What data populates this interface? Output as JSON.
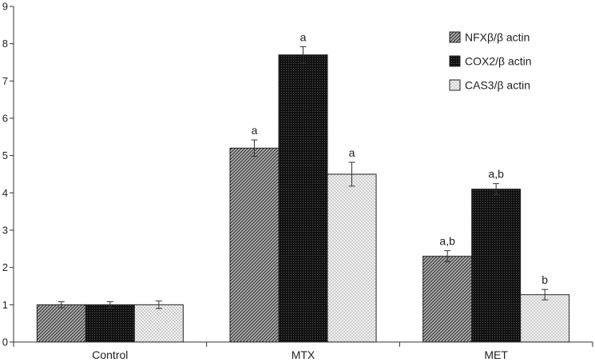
{
  "chart_data": {
    "type": "bar",
    "categories": [
      "Control",
      "MTX",
      "MET"
    ],
    "series": [
      {
        "name": "NFXβ/β actin",
        "values": [
          1.0,
          5.2,
          2.3
        ],
        "errors": [
          0.08,
          0.22,
          0.15
        ],
        "labels": [
          "",
          "a",
          "a,b"
        ],
        "color": "#8a8a8a",
        "pattern": "diagonal-hatch"
      },
      {
        "name": "COX2/β actin",
        "values": [
          1.0,
          7.7,
          4.1
        ],
        "errors": [
          0.08,
          0.22,
          0.15
        ],
        "labels": [
          "",
          "a",
          "a,b"
        ],
        "color": "#1a1a1a",
        "pattern": "dense-dots"
      },
      {
        "name": "CAS3/β actin",
        "values": [
          1.0,
          4.5,
          1.27
        ],
        "errors": [
          0.1,
          0.32,
          0.14
        ],
        "labels": [
          "",
          "a",
          "b"
        ],
        "color": "#d8d8d8",
        "pattern": "light-stipple"
      }
    ],
    "yticks": [
      0,
      1,
      2,
      3,
      4,
      5,
      6,
      7,
      8,
      9
    ],
    "ylim": [
      0,
      9
    ],
    "title": "",
    "xlabel": "",
    "ylabel": "",
    "grid": false,
    "legend_position": "top-right"
  }
}
